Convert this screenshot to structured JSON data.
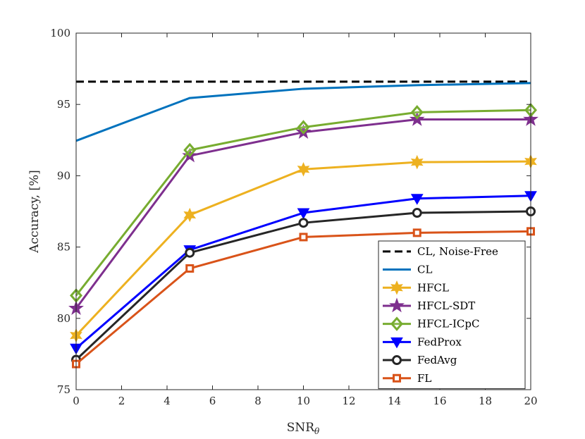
{
  "chart_data": {
    "type": "line",
    "title": "",
    "xlabel": "SNR",
    "xlabel_sub": "θ",
    "ylabel": "Accuracy, [%]",
    "xlim": [
      0,
      20
    ],
    "ylim": [
      75,
      100
    ],
    "xticks": [
      "0",
      "2",
      "4",
      "6",
      "8",
      "10",
      "12",
      "14",
      "16",
      "18",
      "20"
    ],
    "yticks": [
      "75",
      "80",
      "85",
      "90",
      "95",
      "100"
    ],
    "grid": false,
    "legend_position": "bottom-right",
    "series": [
      {
        "name": "CL, Noise-Free",
        "color": "#000000",
        "dash": true,
        "marker": "none",
        "x": [
          0,
          5,
          10,
          15,
          20
        ],
        "y": [
          96.6,
          96.6,
          96.6,
          96.6,
          96.6
        ]
      },
      {
        "name": "CL",
        "color": "#0072BD",
        "dash": false,
        "marker": "none",
        "x": [
          0,
          5,
          10,
          15,
          20
        ],
        "y": [
          92.45,
          95.45,
          96.1,
          96.35,
          96.5
        ]
      },
      {
        "name": "HFCL",
        "color": "#EDB120",
        "dash": false,
        "marker": "hexagram",
        "x": [
          0,
          5,
          10,
          15,
          20
        ],
        "y": [
          78.8,
          87.25,
          90.45,
          90.95,
          91.0
        ]
      },
      {
        "name": "HFCL-SDT",
        "color": "#7E2F8E",
        "dash": false,
        "marker": "pentagram",
        "x": [
          0,
          5,
          10,
          15,
          20
        ],
        "y": [
          80.7,
          91.4,
          93.05,
          93.95,
          93.95
        ]
      },
      {
        "name": "HFCL-ICpC",
        "color": "#77AC30",
        "dash": false,
        "marker": "diamond",
        "x": [
          0,
          5,
          10,
          15,
          20
        ],
        "y": [
          81.6,
          91.8,
          93.4,
          94.45,
          94.6
        ]
      },
      {
        "name": "FedProx",
        "color": "#0000FF",
        "dash": false,
        "marker": "triangle-down",
        "x": [
          0,
          5,
          10,
          15,
          20
        ],
        "y": [
          77.9,
          84.8,
          87.4,
          88.4,
          88.6
        ]
      },
      {
        "name": "FedAvg",
        "color": "#262626",
        "dash": false,
        "marker": "circle",
        "x": [
          0,
          5,
          10,
          15,
          20
        ],
        "y": [
          77.1,
          84.6,
          86.7,
          87.4,
          87.5
        ]
      },
      {
        "name": "FL",
        "color": "#D95319",
        "dash": false,
        "marker": "square",
        "x": [
          0,
          5,
          10,
          15,
          20
        ],
        "y": [
          76.8,
          83.5,
          85.7,
          86.0,
          86.1
        ]
      }
    ]
  }
}
